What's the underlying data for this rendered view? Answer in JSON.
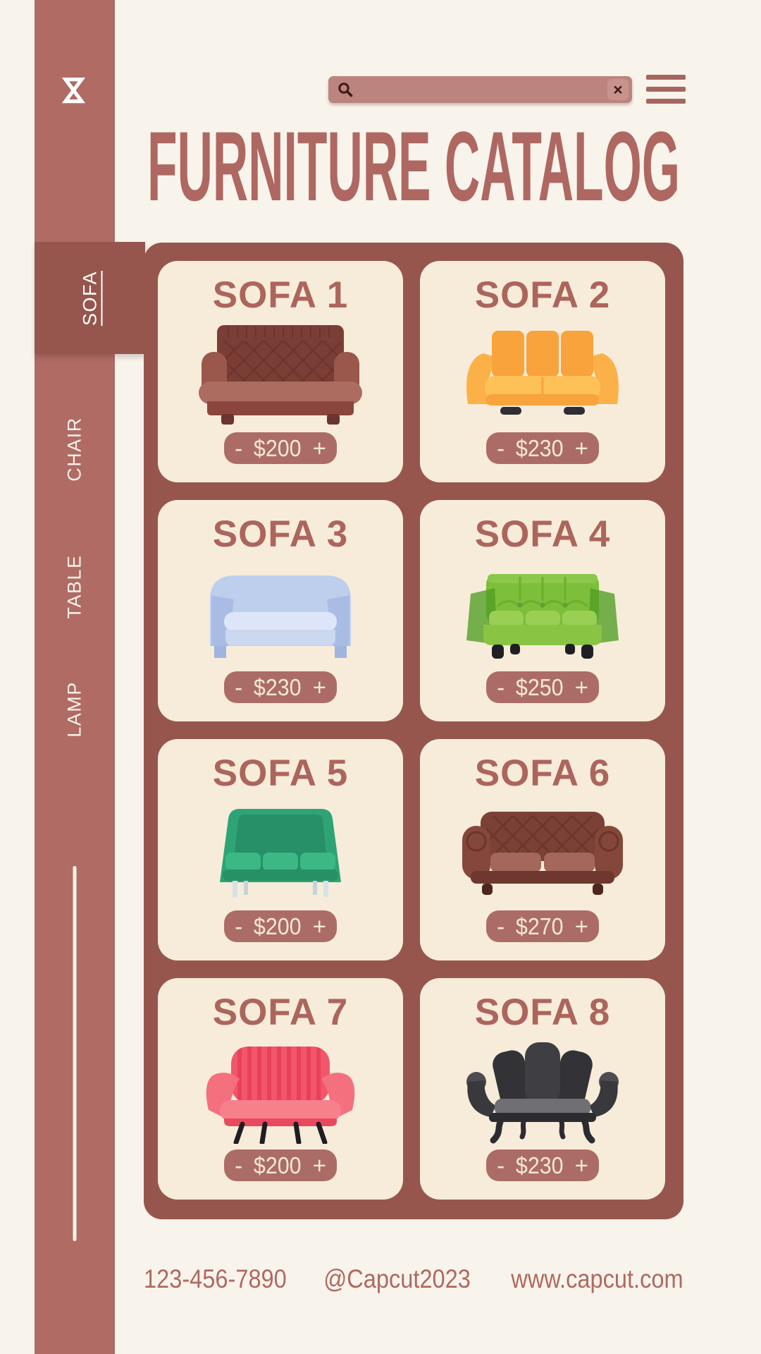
{
  "sidebar": {
    "tabs": [
      {
        "label": "SOFA",
        "active": true
      },
      {
        "label": "CHAIR",
        "active": false
      },
      {
        "label": "TABLE",
        "active": false
      },
      {
        "label": "LAMP",
        "active": false
      }
    ]
  },
  "topbar": {
    "search_value": "",
    "clear_glyph": "×"
  },
  "header": {
    "title": "FURNITURE CATALOG"
  },
  "catalog": {
    "stepper": {
      "decrease": "-",
      "increase": "+"
    },
    "items": [
      {
        "name": "SOFA 1",
        "price": "$200",
        "variant": "maroon-chesterfield"
      },
      {
        "name": "SOFA 2",
        "price": "$230",
        "variant": "orange-modern"
      },
      {
        "name": "SOFA 3",
        "price": "$230",
        "variant": "periwinkle-classic"
      },
      {
        "name": "SOFA 4",
        "price": "$250",
        "variant": "lime-lounge"
      },
      {
        "name": "SOFA 5",
        "price": "$200",
        "variant": "teal-cushion"
      },
      {
        "name": "SOFA 6",
        "price": "$270",
        "variant": "brown-chesterfield"
      },
      {
        "name": "SOFA 7",
        "price": "$200",
        "variant": "red-striped"
      },
      {
        "name": "SOFA 8",
        "price": "$230",
        "variant": "black-vintage"
      }
    ]
  },
  "footer": {
    "phone": "123-456-7890",
    "handle": "@Capcut2023",
    "website": "www.capcut.com"
  },
  "colors": {
    "background": "#F8F4EC",
    "sidebar": "#AF6B64",
    "panel": "#96564E",
    "card": "#F7ECDA",
    "accent_text": "#AE6861",
    "search_bar": "#BC847E",
    "pill": "#AC6C66",
    "pill_text": "#F4E9D5"
  }
}
